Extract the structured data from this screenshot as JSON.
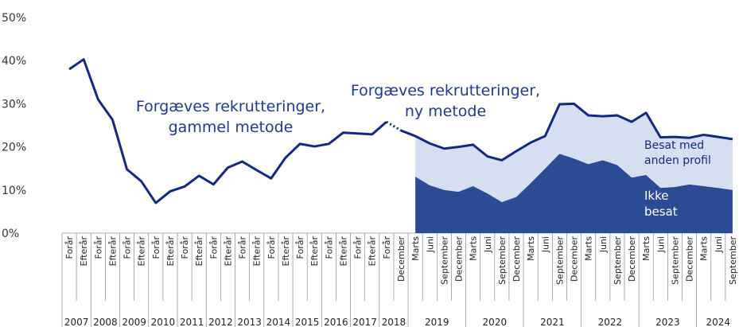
{
  "chart_data": {
    "type": "line_area",
    "categories": [
      "Forår",
      "Efterår",
      "Forår",
      "Efterår",
      "Forår",
      "Efterår",
      "Forår",
      "Efterår",
      "Forår",
      "Efterår",
      "Forår",
      "Efterår",
      "Forår",
      "Efterår",
      "Forår",
      "Efterår",
      "Forår",
      "Efterår",
      "Forår",
      "Efterår",
      "Forår",
      "Efterår",
      "Forår",
      "December",
      "Marts",
      "Juni",
      "September",
      "December",
      "Marts",
      "Juni",
      "September",
      "December",
      "Marts",
      "Juni",
      "September",
      "December",
      "Marts",
      "Juni",
      "September",
      "December",
      "Marts",
      "Juni",
      "September",
      "December",
      "Marts",
      "Juni",
      "September"
    ],
    "years": [
      "2007",
      "2008",
      "2009",
      "2010",
      "2011",
      "2012",
      "2013",
      "2014",
      "2015",
      "2016",
      "2017",
      "2018",
      "2019",
      "2020",
      "2021",
      "2022",
      "2023",
      "2024"
    ],
    "series": [
      {
        "name": "Forgæves rekrutteringer,\ngammel metode",
        "kind": "line",
        "color": "#13287f",
        "values": [
          38,
          40.3,
          31,
          26.3,
          14.8,
          12,
          7,
          9.7,
          10.8,
          13.3,
          11.3,
          15.2,
          16.6,
          14.6,
          12.7,
          17.5,
          20.7,
          20.1,
          20.7,
          23.3,
          23.1,
          22.9,
          25.8,
          null,
          null,
          null,
          null,
          null,
          null,
          null,
          null,
          null,
          null,
          null,
          null,
          null,
          null,
          null,
          null,
          null,
          null,
          null,
          null,
          null,
          null,
          null,
          null
        ]
      },
      {
        "name": "Forgæves rekrutteringer,\nny metode",
        "kind": "line",
        "color": "#13287f",
        "values": [
          null,
          null,
          null,
          null,
          null,
          null,
          null,
          null,
          null,
          null,
          null,
          null,
          null,
          null,
          null,
          null,
          null,
          null,
          null,
          null,
          null,
          null,
          null,
          23.8,
          22.5,
          20.8,
          19.6,
          20,
          20.5,
          17.8,
          16.9,
          19,
          21,
          22.5,
          29.9,
          30,
          27.3,
          27.1,
          27.3,
          25.8,
          27.9,
          22.2,
          22.3,
          22.1,
          22.8,
          22.3,
          21.8
        ]
      },
      {
        "name": "Ikke\nbesat",
        "kind": "area",
        "color": "#2c4b95",
        "values": [
          null,
          null,
          null,
          null,
          null,
          null,
          null,
          null,
          null,
          null,
          null,
          null,
          null,
          null,
          null,
          null,
          null,
          null,
          null,
          null,
          null,
          null,
          null,
          null,
          13.1,
          11.1,
          10,
          9.6,
          10.9,
          9.2,
          7.2,
          8.4,
          11.6,
          15,
          18.4,
          17.3,
          16,
          16.9,
          15.8,
          12.9,
          13.5,
          10.5,
          10.7,
          11.3,
          10.9,
          10.5,
          10
        ]
      },
      {
        "name": "Besat med\nanden profil",
        "kind": "area",
        "color": "#d6dff2",
        "values": [
          null,
          null,
          null,
          null,
          null,
          null,
          null,
          null,
          null,
          null,
          null,
          null,
          null,
          null,
          null,
          null,
          null,
          null,
          null,
          null,
          null,
          null,
          null,
          null,
          9.4,
          9.7,
          9.6,
          10.4,
          9.6,
          8.6,
          9.7,
          10.6,
          9.4,
          7.5,
          11.5,
          12.7,
          11.3,
          10.2,
          11.5,
          12.9,
          14.4,
          11.7,
          11.6,
          10.8,
          11.9,
          11.8,
          11.8
        ]
      }
    ],
    "ylim": [
      0,
      50
    ],
    "yticks": [
      {
        "value": 0,
        "label": "0%"
      },
      {
        "value": 10,
        "label": "10%"
      },
      {
        "value": 20,
        "label": "20%"
      },
      {
        "value": 30,
        "label": "30%"
      },
      {
        "value": 40,
        "label": "40%"
      },
      {
        "value": 50,
        "label": "50%"
      }
    ]
  }
}
